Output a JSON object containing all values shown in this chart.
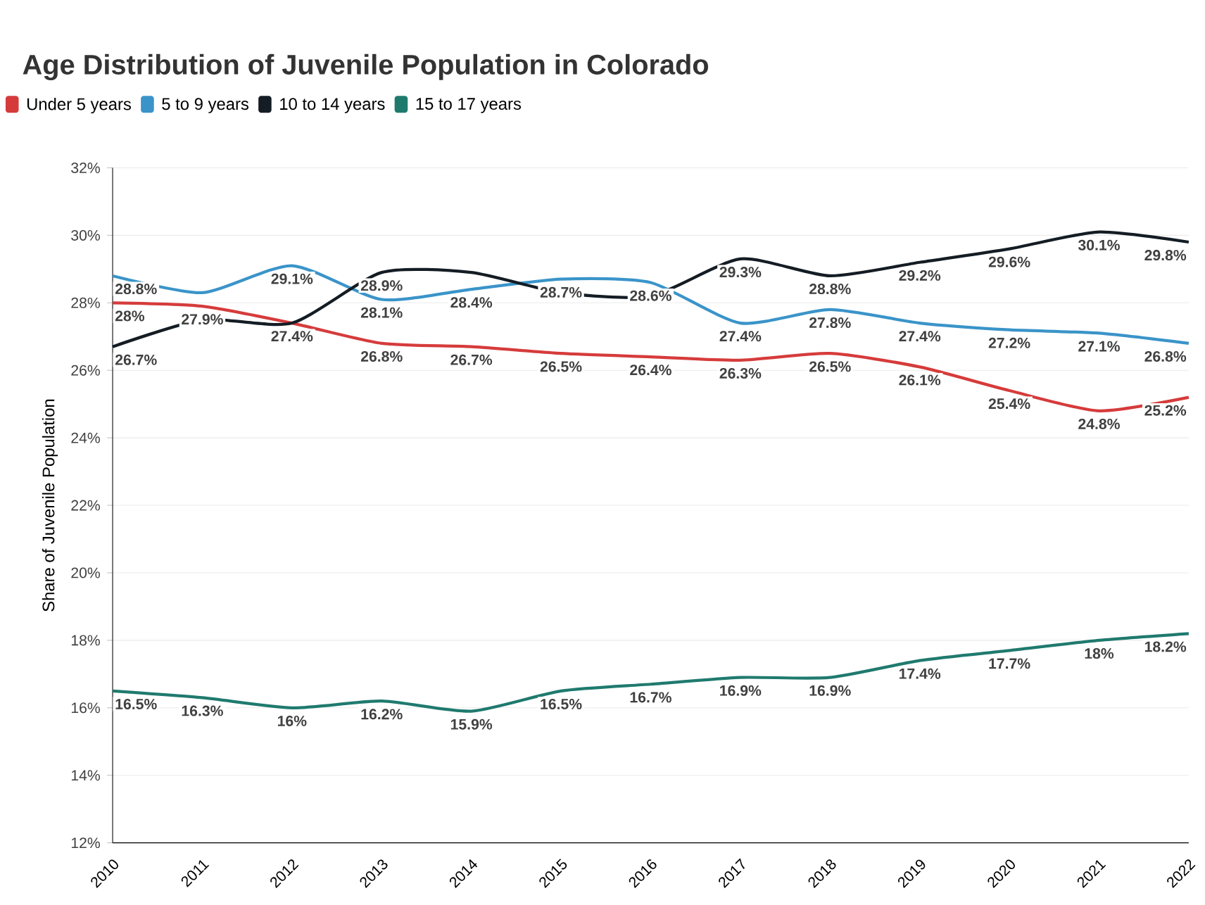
{
  "chart_data": {
    "type": "line",
    "title": "Age Distribution of Juvenile Population in Colorado",
    "ylabel": "Share of Juvenile Population",
    "x": [
      2010,
      2011,
      2012,
      2013,
      2014,
      2015,
      2016,
      2017,
      2018,
      2019,
      2020,
      2021,
      2022
    ],
    "xlim": [
      2010,
      2022
    ],
    "xticks": [
      2010,
      2011,
      2012,
      2013,
      2014,
      2015,
      2016,
      2017,
      2018,
      2019,
      2020,
      2021,
      2022
    ],
    "ylim": [
      12,
      32
    ],
    "yticks": [
      {
        "value": 12,
        "label": "12%"
      },
      {
        "value": 14,
        "label": "14%"
      },
      {
        "value": 16,
        "label": "16%"
      },
      {
        "value": 18,
        "label": "18%"
      },
      {
        "value": 20,
        "label": "20%"
      },
      {
        "value": 22,
        "label": "22%"
      },
      {
        "value": 24,
        "label": "24%"
      },
      {
        "value": 26,
        "label": "26%"
      },
      {
        "value": 28,
        "label": "28%"
      },
      {
        "value": 30,
        "label": "30%"
      },
      {
        "value": 32,
        "label": "32%"
      }
    ],
    "grid": "y",
    "legend": "top left",
    "marker": "none",
    "line_style": "solid",
    "series": [
      {
        "name": "Under 5 years",
        "color": "#d63b3b",
        "values": [
          28,
          27.9,
          27.4,
          26.8,
          26.7,
          26.5,
          26.4,
          26.3,
          26.5,
          26.1,
          25.4,
          24.8,
          25.2
        ],
        "value_labels": [
          "28%",
          "27.9%",
          "27.4%",
          "26.8%",
          "26.7%",
          "26.5%",
          "26.4%",
          "26.3%",
          "26.5%",
          "26.1%",
          "25.4%",
          "24.8%",
          "25.2%"
        ]
      },
      {
        "name": "5 to 9 years",
        "color": "#3a94c9",
        "values": [
          28.8,
          28.3,
          29.1,
          28.1,
          28.4,
          28.7,
          28.6,
          27.4,
          27.8,
          27.4,
          27.2,
          27.1,
          26.8
        ],
        "value_labels": [
          "28.8%",
          null,
          "29.1%",
          "28.1%",
          "28.4%",
          "28.7%",
          "28.6%",
          "27.4%",
          "27.8%",
          "27.4%",
          "27.2%",
          "27.1%",
          "26.8%"
        ]
      },
      {
        "name": "10 to 14 years",
        "color": "#141c24",
        "values": [
          26.7,
          27.5,
          27.4,
          28.9,
          28.9,
          28.3,
          28.2,
          29.3,
          28.8,
          29.2,
          29.6,
          30.1,
          29.8
        ],
        "value_labels": [
          "26.7%",
          null,
          null,
          "28.9%",
          null,
          null,
          null,
          "29.3%",
          "28.8%",
          "29.2%",
          "29.6%",
          "30.1%",
          "29.8%"
        ]
      },
      {
        "name": "15 to 17 years",
        "color": "#1f7a6e",
        "values": [
          16.5,
          16.3,
          16,
          16.2,
          15.9,
          16.5,
          16.7,
          16.9,
          16.9,
          17.4,
          17.7,
          18,
          18.2
        ],
        "value_labels": [
          "16.5%",
          "16.3%",
          "16%",
          "16.2%",
          "15.9%",
          "16.5%",
          "16.7%",
          "16.9%",
          "16.9%",
          "17.4%",
          "17.7%",
          "18%",
          "18.2%"
        ]
      }
    ]
  }
}
